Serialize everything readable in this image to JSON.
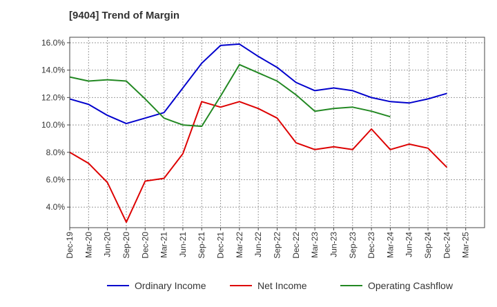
{
  "title": "[9404]  Trend of Margin",
  "chart_data": {
    "type": "line",
    "title": "[9404]  Trend of Margin",
    "xlabel": "",
    "ylabel": "",
    "categories": [
      "Dec-19",
      "Mar-20",
      "Jun-20",
      "Sep-20",
      "Dec-20",
      "Mar-21",
      "Jun-21",
      "Sep-21",
      "Dec-21",
      "Mar-22",
      "Jun-22",
      "Sep-22",
      "Dec-22",
      "Mar-23",
      "Jun-23",
      "Sep-23",
      "Dec-23",
      "Mar-24",
      "Jun-24",
      "Sep-24",
      "Dec-24",
      "Mar-25"
    ],
    "y_ticks": [
      "4.0%",
      "6.0%",
      "8.0%",
      "10.0%",
      "12.0%",
      "14.0%",
      "16.0%"
    ],
    "ylim": [
      2.5,
      16.4
    ],
    "grid": true,
    "legend_position": "bottom",
    "series": [
      {
        "name": "Ordinary Income",
        "color": "#0000cc",
        "values": [
          11.9,
          11.5,
          10.7,
          10.1,
          10.5,
          10.9,
          12.7,
          14.5,
          15.8,
          15.9,
          15.0,
          14.2,
          13.1,
          12.5,
          12.7,
          12.5,
          12.0,
          11.7,
          11.6,
          11.9,
          12.3,
          null
        ]
      },
      {
        "name": "Net Income",
        "color": "#dd0000",
        "values": [
          8.0,
          7.2,
          5.8,
          2.9,
          5.9,
          6.1,
          7.9,
          11.7,
          11.3,
          11.7,
          11.2,
          10.5,
          8.7,
          8.2,
          8.4,
          8.2,
          9.7,
          8.2,
          8.6,
          8.3,
          6.9,
          null
        ]
      },
      {
        "name": "Operating Cashflow",
        "color": "#228822",
        "values": [
          13.5,
          13.2,
          13.3,
          13.2,
          11.9,
          10.5,
          10.0,
          9.9,
          12.1,
          14.4,
          13.8,
          13.2,
          12.2,
          11.0,
          11.2,
          11.3,
          11.0,
          10.6,
          null,
          null,
          null,
          null
        ]
      }
    ]
  }
}
